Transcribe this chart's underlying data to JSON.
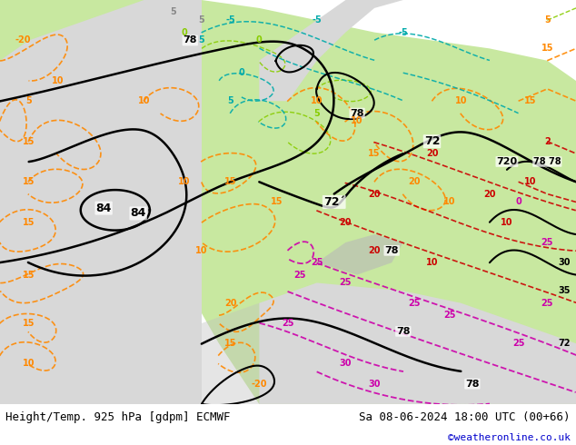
{
  "title_left": "Height/Temp. 925 hPa [gdpm] ECMWF",
  "title_right": "Sa 08-06-2024 18:00 UTC (00+66)",
  "copyright": "©weatheronline.co.uk",
  "fig_width": 6.34,
  "fig_height": 4.9,
  "dpi": 100,
  "bottom_bar_color": "#ffffff",
  "bottom_text_color": "#000000",
  "copyright_color": "#0000cc",
  "font_size_bottom": 9,
  "font_size_copyright": 8,
  "bg_sea": "#d8d8d8",
  "bg_land_green": "#c8e8a0",
  "bg_land_light": "#e0f0c0"
}
